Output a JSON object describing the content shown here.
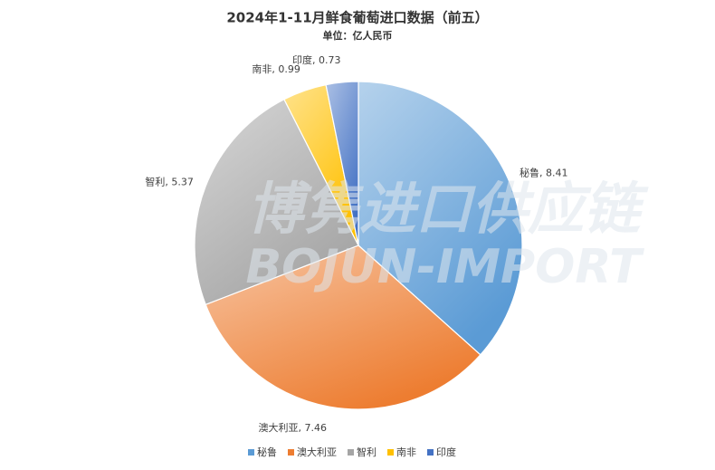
{
  "chart_data": {
    "type": "pie",
    "title": "2024年1-11月鲜食葡萄进口数据（前五）",
    "subtitle": "单位：亿人民币",
    "categories": [
      "秘鲁",
      "澳大利亚",
      "智利",
      "南非",
      "印度"
    ],
    "values": [
      8.41,
      7.46,
      5.37,
      0.99,
      0.73
    ],
    "value_labels": [
      "秘鲁, 8.41",
      "澳大利亚, 7.46",
      "智利, 5.37",
      "南非, 0.99",
      "印度, 0.73"
    ],
    "colors": [
      "#5b9bd5",
      "#ed7d31",
      "#a5a5a5",
      "#ffc000",
      "#4472c4"
    ],
    "legend": "bottom",
    "watermark": [
      "博隽进口供应链",
      "BOJUN-IMPORT"
    ]
  }
}
